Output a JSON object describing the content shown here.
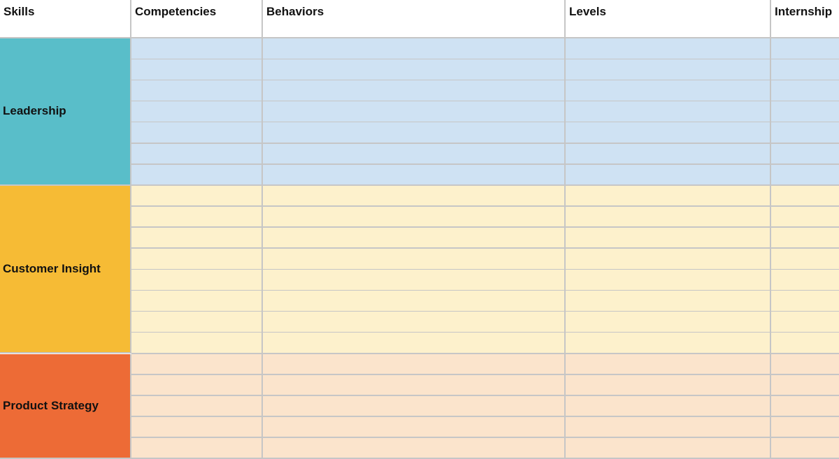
{
  "headers": [
    "Skills",
    "Competencies",
    "Behaviors",
    "Levels",
    "Internship"
  ],
  "skills": [
    {
      "label": "Leadership",
      "rows": 7,
      "color": "#59bec9",
      "fill": "#cfe2f3"
    },
    {
      "label": "Customer Insight",
      "rows": 8,
      "color": "#f6bb35",
      "fill": "#fdf1cc"
    },
    {
      "label": "Product Strategy",
      "rows": 5,
      "color": "#ed6b36",
      "fill": "#fbe4cc"
    }
  ],
  "grid_color": "#c6c6c6"
}
